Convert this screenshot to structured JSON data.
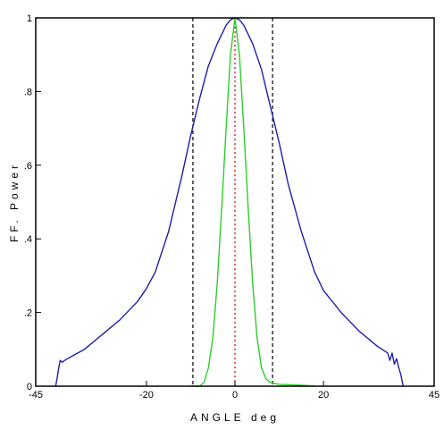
{
  "chart_data": {
    "type": "line",
    "title": "",
    "xlabel": "ANGLE deg",
    "ylabel": "FF. Power",
    "xlim": [
      -45,
      45
    ],
    "ylim": [
      0,
      1
    ],
    "x_ticks": [
      {
        "value": -45,
        "label": "-45"
      },
      {
        "value": -20,
        "label": "-20"
      },
      {
        "value": 0,
        "label": "0"
      },
      {
        "value": 20,
        "label": "20"
      },
      {
        "value": 45,
        "label": "45"
      }
    ],
    "y_ticks": [
      {
        "value": 0,
        "label": "0"
      },
      {
        "value": 0.2,
        "label": ".2"
      },
      {
        "value": 0.4,
        "label": ".4"
      },
      {
        "value": 0.6,
        "label": ".6"
      },
      {
        "value": 0.8,
        "label": ".8"
      },
      {
        "value": 1,
        "label": "1"
      }
    ],
    "grid": false,
    "series": [
      {
        "color": "#1f1fa8",
        "points": [
          [
            -40.5,
            0.0
          ],
          [
            -40.2,
            0.02
          ],
          [
            -39.8,
            0.05
          ],
          [
            -39.5,
            0.07
          ],
          [
            -39.0,
            0.065
          ],
          [
            -38.5,
            0.07
          ],
          [
            -37.0,
            0.08
          ],
          [
            -34.0,
            0.1
          ],
          [
            -30.0,
            0.14
          ],
          [
            -26.0,
            0.18
          ],
          [
            -22.0,
            0.23
          ],
          [
            -20.0,
            0.265
          ],
          [
            -18.0,
            0.31
          ],
          [
            -15.0,
            0.42
          ],
          [
            -12.0,
            0.57
          ],
          [
            -10.0,
            0.68
          ],
          [
            -8.0,
            0.78
          ],
          [
            -6.0,
            0.87
          ],
          [
            -4.0,
            0.93
          ],
          [
            -2.0,
            0.98
          ],
          [
            -1.0,
            0.995
          ],
          [
            0.0,
            1.0
          ],
          [
            1.0,
            0.995
          ],
          [
            2.0,
            0.98
          ],
          [
            4.0,
            0.93
          ],
          [
            6.0,
            0.86
          ],
          [
            8.0,
            0.76
          ],
          [
            10.0,
            0.66
          ],
          [
            12.0,
            0.55
          ],
          [
            15.0,
            0.42
          ],
          [
            18.0,
            0.31
          ],
          [
            20.0,
            0.26
          ],
          [
            24.0,
            0.2
          ],
          [
            28.0,
            0.15
          ],
          [
            32.0,
            0.11
          ],
          [
            34.5,
            0.09
          ],
          [
            35.0,
            0.07
          ],
          [
            35.5,
            0.09
          ],
          [
            36.0,
            0.06
          ],
          [
            36.5,
            0.075
          ],
          [
            37.0,
            0.05
          ],
          [
            37.5,
            0.03
          ],
          [
            38.0,
            0.0
          ]
        ]
      },
      {
        "color": "#2ecc2e",
        "points": [
          [
            -10.0,
            0.0
          ],
          [
            -8.0,
            0.0
          ],
          [
            -7.0,
            0.01
          ],
          [
            -6.0,
            0.05
          ],
          [
            -5.0,
            0.13
          ],
          [
            -4.0,
            0.28
          ],
          [
            -3.0,
            0.48
          ],
          [
            -2.0,
            0.7
          ],
          [
            -1.0,
            0.9
          ],
          [
            0.0,
            1.0
          ],
          [
            1.0,
            0.9
          ],
          [
            2.0,
            0.7
          ],
          [
            3.0,
            0.48
          ],
          [
            4.0,
            0.28
          ],
          [
            5.0,
            0.13
          ],
          [
            6.0,
            0.05
          ],
          [
            7.0,
            0.02
          ],
          [
            8.0,
            0.01
          ],
          [
            10.0,
            0.005
          ],
          [
            15.0,
            0.003
          ],
          [
            18.0,
            0.0
          ]
        ]
      }
    ],
    "reference_lines": [
      {
        "x": -9.5,
        "color": "#000000",
        "style": "dashed"
      },
      {
        "x": 0.0,
        "color": "#cc0000",
        "style": "dotted"
      },
      {
        "x": 8.5,
        "color": "#000000",
        "style": "dashed"
      }
    ]
  }
}
